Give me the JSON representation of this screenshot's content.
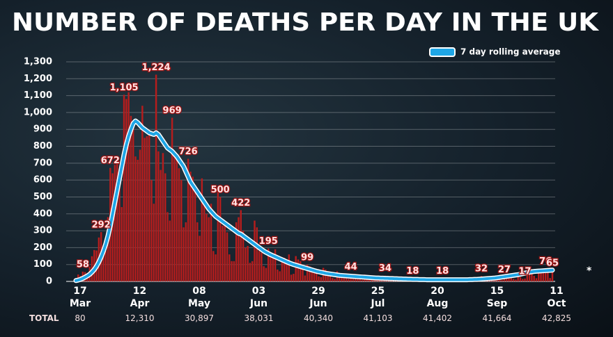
{
  "chart_data": {
    "type": "bar",
    "title": "NUMBER OF DEATHS PER DAY IN THE UK",
    "annotation": "*",
    "ylim": [
      0,
      1300
    ],
    "yticks": [
      0,
      100,
      200,
      300,
      400,
      500,
      600,
      700,
      800,
      900,
      {
        "value": 1000,
        "label": "1,000"
      },
      {
        "value": 1100,
        "label": "1,100"
      },
      {
        "value": 1200,
        "label": "1,200"
      },
      {
        "value": 1300,
        "label": "1,300"
      }
    ],
    "grid": true,
    "legend": "top-right",
    "categories": [
      "17 Mar",
      null,
      null,
      null,
      null,
      null,
      null,
      null,
      null,
      null,
      null,
      null,
      null,
      null,
      null,
      null,
      null,
      null,
      null,
      null,
      null,
      null,
      null,
      null,
      null,
      null,
      "12 Apr",
      null,
      null,
      null,
      null,
      null,
      null,
      null,
      null,
      null,
      null,
      null,
      null,
      null,
      null,
      null,
      null,
      null,
      null,
      null,
      null,
      null,
      null,
      null,
      null,
      null,
      "08 May",
      null,
      null,
      null,
      null,
      null,
      null,
      null,
      null,
      null,
      null,
      null,
      null,
      null,
      null,
      null,
      null,
      null,
      null,
      null,
      null,
      null,
      null,
      null,
      null,
      null,
      "03 Jun",
      null,
      null,
      null,
      null,
      null,
      null,
      null,
      null,
      null,
      null,
      null,
      null,
      null,
      null,
      null,
      null,
      null,
      null,
      null,
      null,
      null,
      null,
      null,
      null,
      null,
      "29 Jun",
      null,
      null,
      null,
      null,
      null,
      null,
      null,
      null,
      null,
      null,
      null,
      null,
      null,
      null,
      null,
      null,
      null,
      null,
      null,
      null,
      null,
      null,
      null,
      null,
      null,
      "25 Jul",
      null,
      null,
      null,
      null,
      null,
      null,
      null,
      null,
      null,
      null,
      null,
      null,
      null,
      null,
      null,
      null,
      null,
      null,
      null,
      null,
      null,
      null,
      null,
      null,
      null,
      "20 Aug",
      null,
      null,
      null,
      null,
      null,
      null,
      null,
      null,
      null,
      null,
      null,
      null,
      null,
      null,
      null,
      null,
      null,
      null,
      null,
      null,
      null,
      null,
      null,
      null,
      null,
      "15 Sep",
      null,
      null,
      null,
      null,
      null,
      null,
      null,
      null,
      null,
      null,
      null,
      null,
      null,
      null,
      null,
      null,
      null,
      null,
      null,
      null,
      null,
      null,
      null,
      null,
      null,
      "11 Oct"
    ],
    "series": [
      {
        "type": "bar",
        "color": "#b51d1d",
        "values": [
          20,
          41,
          32,
          58,
          55,
          48,
          87,
          149,
          186,
          183,
          260,
          292,
          209,
          180,
          381,
          672,
          640,
          690,
          710,
          620,
          440,
          1105,
          1080,
          1120,
          980,
          920,
          740,
          720,
          780,
          1040,
          850,
          860,
          890,
          600,
          460,
          1224,
          770,
          660,
          760,
          640,
          410,
          360,
          969,
          760,
          740,
          670,
          600,
          320,
          350,
          726,
          650,
          620,
          530,
          350,
          270,
          610,
          490,
          400,
          380,
          460,
          180,
          160,
          540,
          500,
          330,
          350,
          290,
          160,
          120,
          120,
          350,
          380,
          422,
          300,
          200,
          210,
          110,
          120,
          360,
          320,
          180,
          170,
          90,
          80,
          195,
          150,
          140,
          190,
          70,
          60,
          120,
          140,
          130,
          160,
          40,
          45,
          150,
          130,
          120,
          100,
          35,
          99,
          90,
          80,
          70,
          60,
          30,
          25,
          80,
          70,
          60,
          50,
          20,
          15,
          60,
          50,
          40,
          40,
          20,
          15,
          44,
          38,
          40,
          30,
          15,
          10,
          40,
          30,
          20,
          20,
          10,
          8,
          30,
          25,
          15,
          34,
          20,
          10,
          8,
          20,
          15,
          18,
          12,
          6,
          5,
          15,
          12,
          18,
          10,
          5,
          5,
          12,
          10,
          8,
          8,
          4,
          3,
          10,
          12,
          10,
          18,
          3,
          2,
          12,
          10,
          8,
          6,
          2,
          1,
          10,
          10,
          8,
          8,
          2,
          3,
          15,
          20,
          32,
          14,
          9,
          6,
          8,
          20,
          21,
          27,
          18,
          9,
          27,
          22,
          25,
          20,
          15,
          11,
          30,
          25,
          15,
          17,
          40,
          50,
          45,
          33,
          19,
          60,
          70,
          65,
          76,
          68,
          20,
          65
        ],
        "value_labels": [
          null,
          null,
          null,
          "58",
          null,
          null,
          null,
          null,
          null,
          null,
          null,
          "292",
          null,
          null,
          null,
          "672",
          null,
          null,
          null,
          null,
          null,
          "1,105",
          null,
          null,
          null,
          null,
          null,
          null,
          null,
          null,
          null,
          null,
          null,
          null,
          null,
          "1,224",
          null,
          null,
          null,
          null,
          null,
          null,
          "969",
          null,
          null,
          null,
          null,
          null,
          null,
          "726",
          null,
          null,
          null,
          null,
          null,
          null,
          null,
          null,
          null,
          null,
          null,
          null,
          null,
          "500",
          null,
          null,
          null,
          null,
          null,
          null,
          null,
          null,
          "422",
          null,
          null,
          null,
          null,
          null,
          null,
          null,
          null,
          null,
          null,
          null,
          "195",
          null,
          null,
          null,
          null,
          null,
          null,
          null,
          null,
          null,
          null,
          null,
          null,
          null,
          null,
          null,
          null,
          "99",
          null,
          null,
          null,
          null,
          null,
          null,
          null,
          null,
          null,
          null,
          null,
          null,
          null,
          null,
          null,
          null,
          null,
          null,
          "44",
          null,
          null,
          null,
          null,
          null,
          null,
          null,
          null,
          null,
          null,
          null,
          null,
          null,
          null,
          "34",
          null,
          null,
          null,
          null,
          null,
          null,
          null,
          null,
          null,
          null,
          null,
          "18",
          null,
          null,
          null,
          null,
          null,
          null,
          null,
          null,
          null,
          null,
          null,
          null,
          "18",
          null,
          null,
          null,
          null,
          null,
          null,
          null,
          null,
          null,
          null,
          null,
          null,
          null,
          null,
          null,
          null,
          "32",
          null,
          null,
          null,
          null,
          null,
          null,
          null,
          null,
          null,
          "27",
          null,
          null,
          null,
          null,
          null,
          null,
          null,
          null,
          "17",
          null,
          null,
          null,
          null,
          null,
          null,
          null,
          null,
          "76",
          null,
          null,
          "65"
        ]
      },
      {
        "type": "line",
        "name": "7 day rolling average",
        "color": "#1ea6e6",
        "values": [
          5,
          8,
          12,
          18,
          25,
          33,
          42,
          55,
          70,
          90,
          115,
          145,
          180,
          220,
          270,
          330,
          400,
          470,
          540,
          610,
          680,
          750,
          810,
          860,
          900,
          935,
          950,
          940,
          925,
          910,
          900,
          890,
          880,
          875,
          870,
          880,
          870,
          850,
          830,
          810,
          790,
          780,
          770,
          755,
          740,
          720,
          700,
          680,
          650,
          620,
          590,
          570,
          550,
          530,
          510,
          490,
          470,
          450,
          430,
          415,
          400,
          385,
          375,
          365,
          355,
          345,
          335,
          325,
          315,
          305,
          295,
          285,
          280,
          270,
          260,
          250,
          240,
          230,
          220,
          210,
          200,
          190,
          180,
          172,
          165,
          158,
          152,
          146,
          140,
          134,
          128,
          122,
          116,
          110,
          105,
          100,
          96,
          92,
          88,
          84,
          80,
          76,
          72,
          68,
          64,
          60,
          57,
          54,
          51,
          48,
          46,
          44,
          42,
          40,
          38,
          36,
          35,
          34,
          33,
          32,
          31,
          30,
          29,
          28,
          27,
          26,
          25,
          24,
          23,
          22,
          21,
          20,
          20,
          19,
          19,
          18,
          18,
          17,
          17,
          16,
          16,
          15,
          15,
          14,
          14,
          13,
          13,
          12,
          12,
          12,
          11,
          11,
          11,
          10,
          10,
          10,
          10,
          10,
          10,
          10,
          10,
          10,
          10,
          10,
          10,
          10,
          10,
          10,
          10,
          10,
          10,
          10,
          11,
          11,
          12,
          12,
          13,
          14,
          15,
          16,
          17,
          18,
          19,
          20,
          22,
          24,
          26,
          28,
          30,
          32,
          34,
          36,
          38,
          40,
          43,
          46,
          49,
          52,
          55,
          57,
          59,
          60,
          61,
          62,
          63,
          64,
          65,
          66,
          67
        ]
      }
    ],
    "totals": {
      "label": "TOTAL",
      "values": [
        "80",
        "12,310",
        "30,897",
        "38,031",
        "40,340",
        "41,103",
        "41,402",
        "41,664",
        "42,825"
      ]
    }
  }
}
